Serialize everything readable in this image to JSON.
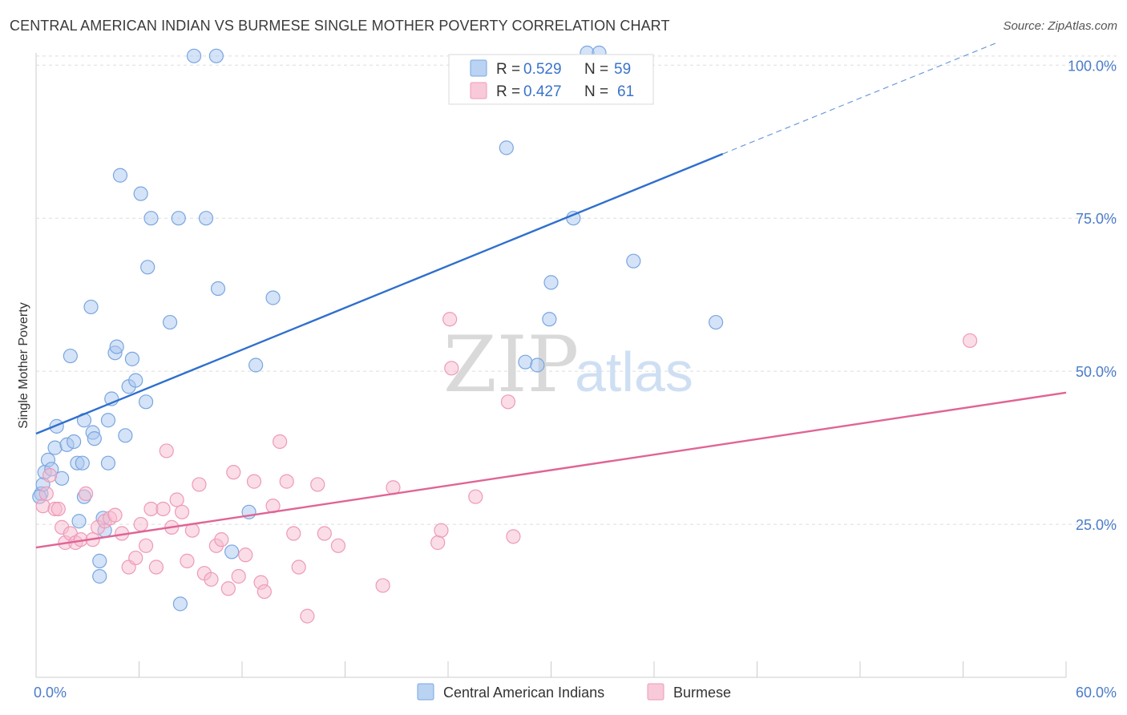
{
  "title": "CENTRAL AMERICAN INDIAN VS BURMESE SINGLE MOTHER POVERTY CORRELATION CHART",
  "source": "Source: ZipAtlas.com",
  "watermark": {
    "zip": "ZIP",
    "atlas": "atlas"
  },
  "colors": {
    "blue_fill": "#a9c8f0",
    "blue_stroke": "#7aa6e0",
    "blue_line": "#2f6fcd",
    "pink_fill": "#f6bcd0",
    "pink_stroke": "#ee9ab8",
    "pink_line": "#e06494",
    "grid": "#dddddd",
    "axis_text": "#4a7cc9"
  },
  "legend": {
    "rows": [
      {
        "r_label": "R = ",
        "r_value": "0.529",
        "n_label": "N = ",
        "n_value": "59"
      },
      {
        "r_label": "R = ",
        "r_value": "0.427",
        "n_label": "N = ",
        "n_value": "61"
      }
    ]
  },
  "chart_data": {
    "type": "scatter",
    "title": "CENTRAL AMERICAN INDIAN VS BURMESE SINGLE MOTHER POVERTY CORRELATION CHART",
    "xlabel": "",
    "ylabel": "Single Mother Poverty",
    "xlim": [
      0,
      60
    ],
    "ylim": [
      0,
      102
    ],
    "x_tick_labels": [
      "0.0%",
      "60.0%"
    ],
    "y_ticks": [
      25,
      50,
      75,
      100
    ],
    "y_tick_labels": [
      "25.0%",
      "50.0%",
      "75.0%",
      "100.0%"
    ],
    "grid": true,
    "legend_position": "top-center",
    "series": [
      {
        "name": "Central American Indians",
        "R": 0.529,
        "N": 59,
        "trend": {
          "x": [
            0,
            40
          ],
          "y": [
            39.8,
            85.5
          ],
          "extended_to": [
            56,
            103.7
          ]
        },
        "points": [
          [
            0.3,
            30.0
          ],
          [
            0.4,
            31.5
          ],
          [
            0.5,
            33.5
          ],
          [
            0.7,
            35.5
          ],
          [
            0.9,
            34.0
          ],
          [
            1.1,
            37.5
          ],
          [
            1.2,
            41.0
          ],
          [
            1.5,
            32.5
          ],
          [
            1.8,
            38.0
          ],
          [
            2.0,
            52.5
          ],
          [
            2.2,
            38.5
          ],
          [
            2.4,
            35.0
          ],
          [
            2.5,
            25.5
          ],
          [
            2.7,
            35.0
          ],
          [
            2.8,
            29.5
          ],
          [
            2.8,
            42.0
          ],
          [
            3.2,
            60.5
          ],
          [
            3.3,
            40.0
          ],
          [
            3.4,
            39.0
          ],
          [
            3.7,
            19.0
          ],
          [
            3.7,
            16.5
          ],
          [
            3.9,
            26.0
          ],
          [
            4.0,
            24.0
          ],
          [
            4.2,
            42.0
          ],
          [
            4.2,
            35.0
          ],
          [
            4.4,
            45.5
          ],
          [
            4.6,
            53.0
          ],
          [
            4.7,
            54.0
          ],
          [
            4.9,
            82.0
          ],
          [
            5.2,
            39.5
          ],
          [
            5.4,
            47.5
          ],
          [
            5.6,
            52.0
          ],
          [
            5.8,
            48.5
          ],
          [
            6.1,
            79.0
          ],
          [
            6.4,
            45.0
          ],
          [
            6.5,
            67.0
          ],
          [
            6.7,
            75.0
          ],
          [
            7.8,
            58.0
          ],
          [
            8.3,
            75.0
          ],
          [
            8.4,
            12.0
          ],
          [
            9.2,
            101.5
          ],
          [
            9.9,
            75.0
          ],
          [
            10.5,
            101.5
          ],
          [
            10.6,
            63.5
          ],
          [
            11.4,
            20.5
          ],
          [
            12.4,
            27.0
          ],
          [
            12.8,
            51.0
          ],
          [
            13.8,
            62.0
          ],
          [
            27.4,
            86.5
          ],
          [
            28.5,
            51.5
          ],
          [
            29.2,
            51.0
          ],
          [
            29.9,
            58.5
          ],
          [
            30.0,
            64.5
          ],
          [
            31.3,
            75.0
          ],
          [
            32.1,
            102.0
          ],
          [
            32.8,
            102.0
          ],
          [
            34.8,
            68.0
          ],
          [
            39.6,
            58.0
          ],
          [
            0.2,
            29.5
          ]
        ]
      },
      {
        "name": "Burmese",
        "R": 0.427,
        "N": 61,
        "trend": {
          "x": [
            0,
            60
          ],
          "y": [
            21.2,
            46.5
          ]
        },
        "points": [
          [
            0.4,
            28.0
          ],
          [
            0.6,
            30.0
          ],
          [
            0.8,
            33.0
          ],
          [
            1.1,
            27.5
          ],
          [
            1.3,
            27.5
          ],
          [
            1.5,
            24.5
          ],
          [
            1.7,
            22.0
          ],
          [
            2.0,
            23.5
          ],
          [
            2.3,
            22.0
          ],
          [
            2.6,
            22.5
          ],
          [
            2.9,
            30.0
          ],
          [
            3.3,
            22.5
          ],
          [
            3.6,
            24.5
          ],
          [
            4.0,
            25.5
          ],
          [
            4.3,
            26.0
          ],
          [
            4.6,
            26.5
          ],
          [
            5.0,
            23.5
          ],
          [
            5.4,
            18.0
          ],
          [
            5.8,
            19.5
          ],
          [
            6.1,
            25.0
          ],
          [
            6.4,
            21.5
          ],
          [
            6.7,
            27.5
          ],
          [
            7.0,
            18.0
          ],
          [
            7.4,
            27.5
          ],
          [
            7.6,
            37.0
          ],
          [
            7.9,
            24.5
          ],
          [
            8.2,
            29.0
          ],
          [
            8.5,
            27.0
          ],
          [
            8.8,
            19.0
          ],
          [
            9.1,
            24.0
          ],
          [
            9.5,
            31.5
          ],
          [
            9.8,
            17.0
          ],
          [
            10.2,
            16.0
          ],
          [
            10.5,
            21.5
          ],
          [
            10.8,
            22.5
          ],
          [
            11.2,
            14.5
          ],
          [
            11.5,
            33.5
          ],
          [
            11.8,
            16.5
          ],
          [
            12.2,
            20.0
          ],
          [
            12.7,
            32.0
          ],
          [
            13.1,
            15.5
          ],
          [
            13.3,
            14.0
          ],
          [
            13.8,
            28.0
          ],
          [
            14.2,
            38.5
          ],
          [
            14.6,
            32.0
          ],
          [
            15.0,
            23.5
          ],
          [
            15.3,
            18.0
          ],
          [
            15.8,
            10.0
          ],
          [
            16.4,
            31.5
          ],
          [
            16.8,
            23.5
          ],
          [
            17.6,
            21.5
          ],
          [
            20.2,
            15.0
          ],
          [
            20.8,
            31.0
          ],
          [
            23.4,
            22.0
          ],
          [
            23.6,
            24.0
          ],
          [
            24.1,
            58.5
          ],
          [
            24.2,
            50.5
          ],
          [
            25.6,
            29.5
          ],
          [
            27.5,
            45.0
          ],
          [
            27.8,
            23.0
          ],
          [
            54.4,
            55.0
          ]
        ]
      }
    ]
  }
}
